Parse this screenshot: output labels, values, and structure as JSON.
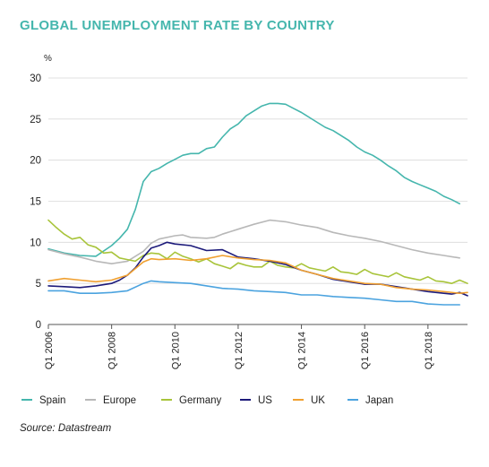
{
  "title": "GLOBAL UNEMPLOYMENT RATE BY COUNTRY",
  "source": "Source: Datastream",
  "chart_data": {
    "type": "line",
    "ylabel": "%",
    "ylim": [
      0,
      30
    ],
    "yticks": [
      0,
      5,
      10,
      15,
      20,
      25,
      30
    ],
    "xlim": [
      2006,
      2019.25
    ],
    "xticks": [
      {
        "x": 2006,
        "label": "Q1 2006"
      },
      {
        "x": 2008,
        "label": "Q1 2008"
      },
      {
        "x": 2010,
        "label": "Q1 2010"
      },
      {
        "x": 2012,
        "label": "Q1 2012"
      },
      {
        "x": 2014,
        "label": "Q1 2014"
      },
      {
        "x": 2016,
        "label": "Q1 2016"
      },
      {
        "x": 2018,
        "label": "Q1 2018"
      }
    ],
    "grid": "horizontal",
    "legend_position": "bottom",
    "series": [
      {
        "name": "Spain",
        "color": "#45b6ad",
        "points": [
          [
            2006,
            9.2
          ],
          [
            2006.5,
            8.7
          ],
          [
            2007,
            8.4
          ],
          [
            2007.5,
            8.3
          ],
          [
            2008,
            9.6
          ],
          [
            2008.25,
            10.5
          ],
          [
            2008.5,
            11.6
          ],
          [
            2008.75,
            14.0
          ],
          [
            2009,
            17.4
          ],
          [
            2009.25,
            18.6
          ],
          [
            2009.5,
            19.0
          ],
          [
            2009.75,
            19.6
          ],
          [
            2010,
            20.1
          ],
          [
            2010.25,
            20.6
          ],
          [
            2010.5,
            20.8
          ],
          [
            2010.75,
            20.8
          ],
          [
            2011,
            21.4
          ],
          [
            2011.25,
            21.6
          ],
          [
            2011.5,
            22.8
          ],
          [
            2011.75,
            23.8
          ],
          [
            2012,
            24.4
          ],
          [
            2012.25,
            25.4
          ],
          [
            2012.5,
            26.0
          ],
          [
            2012.75,
            26.6
          ],
          [
            2013,
            26.9
          ],
          [
            2013.25,
            26.9
          ],
          [
            2013.5,
            26.8
          ],
          [
            2013.75,
            26.3
          ],
          [
            2014,
            25.8
          ],
          [
            2014.25,
            25.2
          ],
          [
            2014.5,
            24.6
          ],
          [
            2014.75,
            24.0
          ],
          [
            2015,
            23.6
          ],
          [
            2015.25,
            23.0
          ],
          [
            2015.5,
            22.4
          ],
          [
            2015.75,
            21.6
          ],
          [
            2016,
            21.0
          ],
          [
            2016.25,
            20.6
          ],
          [
            2016.5,
            20.0
          ],
          [
            2016.75,
            19.3
          ],
          [
            2017,
            18.7
          ],
          [
            2017.25,
            17.9
          ],
          [
            2017.5,
            17.4
          ],
          [
            2017.75,
            17.0
          ],
          [
            2018,
            16.6
          ],
          [
            2018.25,
            16.2
          ],
          [
            2018.5,
            15.6
          ],
          [
            2018.75,
            15.2
          ],
          [
            2019,
            14.7
          ]
        ]
      },
      {
        "name": "Europe",
        "color": "#b8b8b8",
        "points": [
          [
            2006,
            9.1
          ],
          [
            2006.5,
            8.6
          ],
          [
            2007,
            8.2
          ],
          [
            2007.5,
            7.7
          ],
          [
            2008,
            7.4
          ],
          [
            2008.5,
            7.7
          ],
          [
            2009,
            8.9
          ],
          [
            2009.25,
            9.9
          ],
          [
            2009.5,
            10.4
          ],
          [
            2010,
            10.8
          ],
          [
            2010.25,
            10.9
          ],
          [
            2010.5,
            10.6
          ],
          [
            2011,
            10.5
          ],
          [
            2011.25,
            10.6
          ],
          [
            2011.5,
            11.0
          ],
          [
            2012,
            11.6
          ],
          [
            2012.5,
            12.2
          ],
          [
            2013,
            12.7
          ],
          [
            2013.25,
            12.6
          ],
          [
            2013.5,
            12.5
          ],
          [
            2014,
            12.1
          ],
          [
            2014.5,
            11.8
          ],
          [
            2015,
            11.2
          ],
          [
            2015.5,
            10.8
          ],
          [
            2016,
            10.5
          ],
          [
            2016.5,
            10.1
          ],
          [
            2017,
            9.6
          ],
          [
            2017.5,
            9.1
          ],
          [
            2018,
            8.7
          ],
          [
            2018.5,
            8.4
          ],
          [
            2019,
            8.1
          ]
        ]
      },
      {
        "name": "Germany",
        "color": "#a8c43a",
        "points": [
          [
            2006,
            12.7
          ],
          [
            2006.25,
            11.8
          ],
          [
            2006.5,
            11.0
          ],
          [
            2006.75,
            10.4
          ],
          [
            2007,
            10.6
          ],
          [
            2007.25,
            9.7
          ],
          [
            2007.5,
            9.4
          ],
          [
            2007.75,
            8.7
          ],
          [
            2008,
            8.8
          ],
          [
            2008.25,
            8.1
          ],
          [
            2008.5,
            7.9
          ],
          [
            2008.75,
            7.7
          ],
          [
            2009,
            8.4
          ],
          [
            2009.25,
            8.7
          ],
          [
            2009.5,
            8.6
          ],
          [
            2009.75,
            8.0
          ],
          [
            2010,
            8.8
          ],
          [
            2010.25,
            8.3
          ],
          [
            2010.5,
            8.0
          ],
          [
            2010.75,
            7.6
          ],
          [
            2011,
            8.0
          ],
          [
            2011.25,
            7.4
          ],
          [
            2011.5,
            7.1
          ],
          [
            2011.75,
            6.8
          ],
          [
            2012,
            7.5
          ],
          [
            2012.25,
            7.2
          ],
          [
            2012.5,
            7.0
          ],
          [
            2012.75,
            7.0
          ],
          [
            2013,
            7.7
          ],
          [
            2013.25,
            7.2
          ],
          [
            2013.5,
            7.0
          ],
          [
            2013.75,
            6.9
          ],
          [
            2014,
            7.4
          ],
          [
            2014.25,
            6.9
          ],
          [
            2014.5,
            6.7
          ],
          [
            2014.75,
            6.5
          ],
          [
            2015,
            7.0
          ],
          [
            2015.25,
            6.4
          ],
          [
            2015.5,
            6.3
          ],
          [
            2015.75,
            6.1
          ],
          [
            2016,
            6.7
          ],
          [
            2016.25,
            6.2
          ],
          [
            2016.5,
            6.0
          ],
          [
            2016.75,
            5.8
          ],
          [
            2017,
            6.3
          ],
          [
            2017.25,
            5.8
          ],
          [
            2017.5,
            5.6
          ],
          [
            2017.75,
            5.4
          ],
          [
            2018,
            5.8
          ],
          [
            2018.25,
            5.3
          ],
          [
            2018.5,
            5.2
          ],
          [
            2018.75,
            5.0
          ],
          [
            2019,
            5.4
          ],
          [
            2019.25,
            5.0
          ]
        ]
      },
      {
        "name": "US",
        "color": "#1c1a7a",
        "points": [
          [
            2006,
            4.7
          ],
          [
            2006.5,
            4.6
          ],
          [
            2007,
            4.5
          ],
          [
            2007.5,
            4.7
          ],
          [
            2008,
            5.0
          ],
          [
            2008.25,
            5.4
          ],
          [
            2008.5,
            6.0
          ],
          [
            2008.75,
            6.9
          ],
          [
            2009,
            8.2
          ],
          [
            2009.25,
            9.3
          ],
          [
            2009.5,
            9.6
          ],
          [
            2009.75,
            10.0
          ],
          [
            2010,
            9.8
          ],
          [
            2010.5,
            9.6
          ],
          [
            2011,
            9.0
          ],
          [
            2011.5,
            9.1
          ],
          [
            2012,
            8.2
          ],
          [
            2012.5,
            8.0
          ],
          [
            2013,
            7.7
          ],
          [
            2013.5,
            7.3
          ],
          [
            2014,
            6.6
          ],
          [
            2014.5,
            6.1
          ],
          [
            2015,
            5.5
          ],
          [
            2015.5,
            5.2
          ],
          [
            2016,
            4.9
          ],
          [
            2016.5,
            4.9
          ],
          [
            2017,
            4.6
          ],
          [
            2017.5,
            4.3
          ],
          [
            2018,
            4.0
          ],
          [
            2018.5,
            3.8
          ],
          [
            2018.75,
            3.7
          ],
          [
            2019,
            3.9
          ],
          [
            2019.25,
            3.5
          ]
        ]
      },
      {
        "name": "UK",
        "color": "#f0a030",
        "points": [
          [
            2006,
            5.3
          ],
          [
            2006.5,
            5.6
          ],
          [
            2007,
            5.4
          ],
          [
            2007.5,
            5.2
          ],
          [
            2008,
            5.4
          ],
          [
            2008.5,
            6.0
          ],
          [
            2009,
            7.6
          ],
          [
            2009.25,
            8.0
          ],
          [
            2009.5,
            7.9
          ],
          [
            2010,
            8.0
          ],
          [
            2010.5,
            7.8
          ],
          [
            2011,
            8.0
          ],
          [
            2011.5,
            8.4
          ],
          [
            2012,
            8.1
          ],
          [
            2012.5,
            7.9
          ],
          [
            2013,
            7.8
          ],
          [
            2013.5,
            7.5
          ],
          [
            2014,
            6.6
          ],
          [
            2014.5,
            6.1
          ],
          [
            2015,
            5.6
          ],
          [
            2015.5,
            5.3
          ],
          [
            2016,
            5.0
          ],
          [
            2016.5,
            4.9
          ],
          [
            2017,
            4.5
          ],
          [
            2017.5,
            4.3
          ],
          [
            2018,
            4.2
          ],
          [
            2018.5,
            4.0
          ],
          [
            2019,
            3.8
          ],
          [
            2019.25,
            3.9
          ]
        ]
      },
      {
        "name": "Japan",
        "color": "#4ba3df",
        "points": [
          [
            2006,
            4.1
          ],
          [
            2006.5,
            4.1
          ],
          [
            2007,
            3.8
          ],
          [
            2007.5,
            3.8
          ],
          [
            2008,
            3.9
          ],
          [
            2008.5,
            4.1
          ],
          [
            2009,
            5.0
          ],
          [
            2009.25,
            5.3
          ],
          [
            2009.5,
            5.2
          ],
          [
            2010,
            5.1
          ],
          [
            2010.5,
            5.0
          ],
          [
            2011,
            4.7
          ],
          [
            2011.5,
            4.4
          ],
          [
            2012,
            4.3
          ],
          [
            2012.5,
            4.1
          ],
          [
            2013,
            4.0
          ],
          [
            2013.5,
            3.9
          ],
          [
            2014,
            3.6
          ],
          [
            2014.5,
            3.6
          ],
          [
            2015,
            3.4
          ],
          [
            2015.5,
            3.3
          ],
          [
            2016,
            3.2
          ],
          [
            2016.5,
            3.0
          ],
          [
            2017,
            2.8
          ],
          [
            2017.5,
            2.8
          ],
          [
            2018,
            2.5
          ],
          [
            2018.5,
            2.4
          ],
          [
            2019,
            2.4
          ]
        ]
      }
    ]
  }
}
